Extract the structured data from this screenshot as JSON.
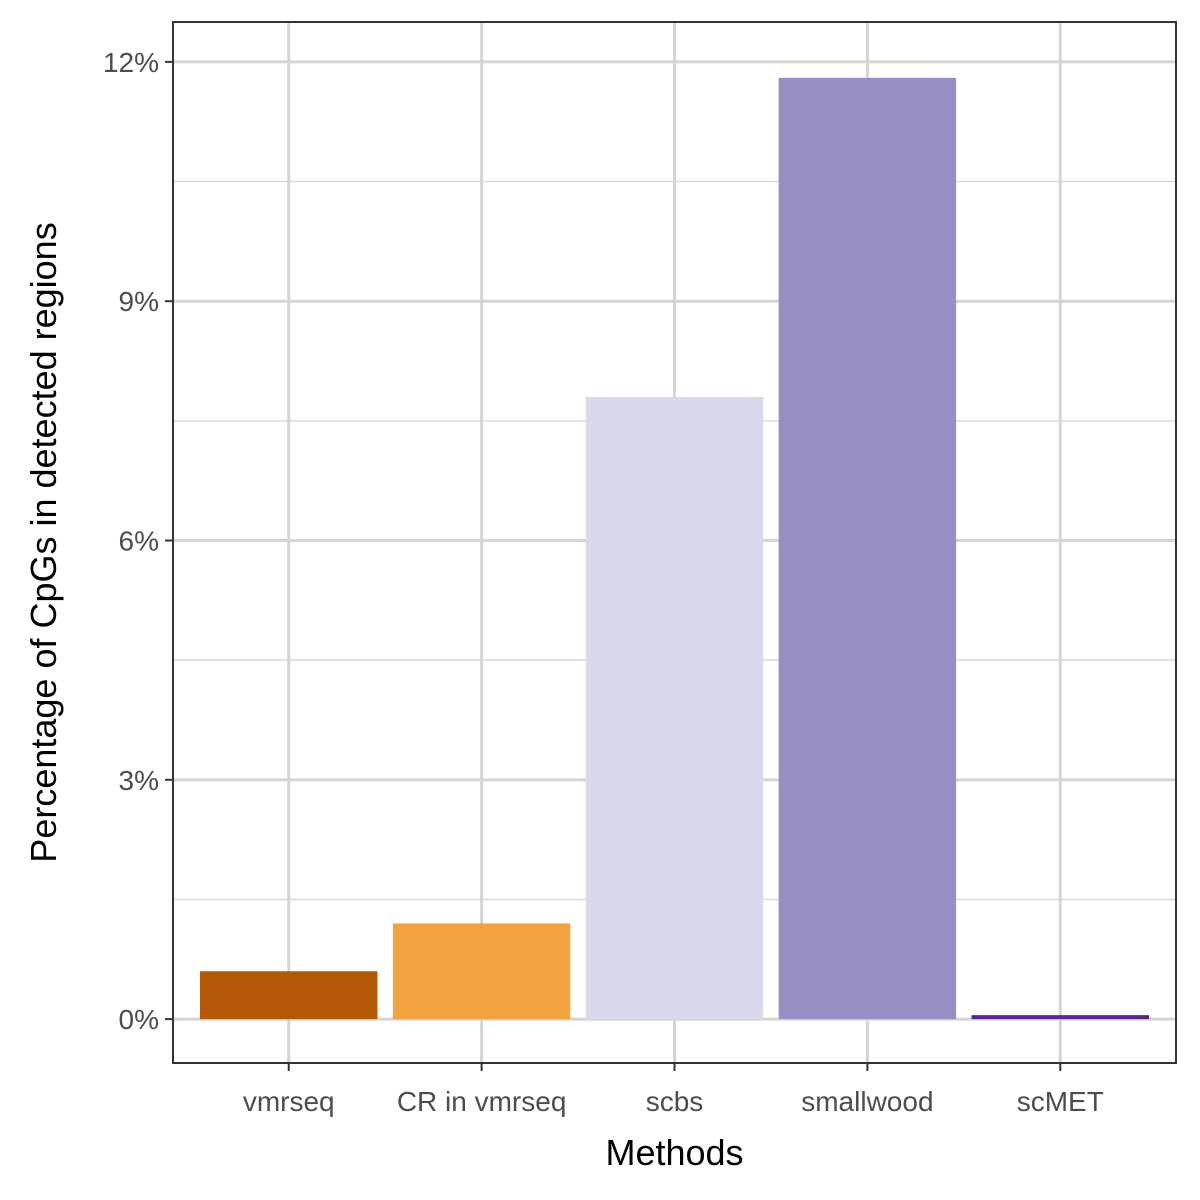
{
  "chart_data": {
    "type": "bar",
    "title": "",
    "xlabel": "Methods",
    "ylabel": "Percentage of CpGs in detected regions",
    "categories": [
      "vmrseq",
      "CR in vmrseq",
      "scbs",
      "smallwood",
      "scMET"
    ],
    "values": [
      0.6,
      1.2,
      7.8,
      11.8,
      0.05
    ],
    "colors": [
      "#b35806",
      "#f1a340",
      "#d8daeb",
      "#998ec3",
      "#542788"
    ],
    "ylim": [
      -0.55,
      12.5
    ],
    "yticks": [
      0,
      3,
      6,
      9,
      12
    ],
    "ytick_labels": [
      "0%",
      "3%",
      "6%",
      "9%",
      "12%"
    ],
    "grid": true,
    "legend": "none"
  }
}
